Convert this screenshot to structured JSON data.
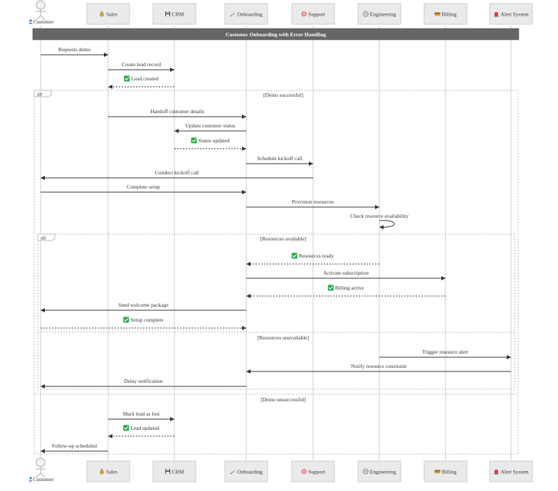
{
  "diagram": {
    "title": "Customer Onboarding with Error Handling",
    "colors": {
      "box_fill": "#eaeaea",
      "box_stroke": "#cccccc",
      "line": "#333333",
      "lifeline": "#cccccc",
      "title_bar": "#666666",
      "check": "#22aa44"
    },
    "participants": [
      {
        "id": "customer",
        "label": "Customer",
        "icon": "person-icon",
        "actor": true
      },
      {
        "id": "sales",
        "label": "Sales",
        "icon": "money-bag-icon"
      },
      {
        "id": "crm",
        "label": "CRM",
        "icon": "floppy-disk-icon"
      },
      {
        "id": "onboarding",
        "label": "Onboarding",
        "icon": "rocket-icon"
      },
      {
        "id": "support",
        "label": "Support",
        "icon": "target-icon"
      },
      {
        "id": "engineering",
        "label": "Engineering",
        "icon": "gear-icon"
      },
      {
        "id": "billing",
        "label": "Billing",
        "icon": "credit-card-icon"
      },
      {
        "id": "alert",
        "label": "Alert System",
        "icon": "alarm-icon"
      }
    ],
    "messages": [
      {
        "from": "customer",
        "to": "sales",
        "text": "Requests demo",
        "dashed": false
      },
      {
        "from": "sales",
        "to": "crm",
        "text": "Create lead record",
        "dashed": false
      },
      {
        "from": "crm",
        "to": "sales",
        "text": "Lead created",
        "dashed": true,
        "check": true
      },
      {
        "from": "sales",
        "to": "onboarding",
        "text": "Handoff customer details",
        "dashed": false
      },
      {
        "from": "onboarding",
        "to": "crm",
        "text": "Update customer status",
        "dashed": false
      },
      {
        "from": "crm",
        "to": "onboarding",
        "text": "Status updated",
        "dashed": true,
        "check": true
      },
      {
        "from": "onboarding",
        "to": "support",
        "text": "Schedule kickoff call",
        "dashed": false
      },
      {
        "from": "support",
        "to": "customer",
        "text": "Conduct kickoff call",
        "dashed": false
      },
      {
        "from": "customer",
        "to": "onboarding",
        "text": "Complete setup",
        "dashed": false
      },
      {
        "from": "onboarding",
        "to": "engineering",
        "text": "Provision resources",
        "dashed": false
      },
      {
        "from": "engineering",
        "to": "engineering",
        "text": "Check resource availability",
        "dashed": false,
        "self": true
      },
      {
        "from": "engineering",
        "to": "onboarding",
        "text": "Resources ready",
        "dashed": true,
        "check": true
      },
      {
        "from": "onboarding",
        "to": "billing",
        "text": "Activate subscription",
        "dashed": false
      },
      {
        "from": "billing",
        "to": "onboarding",
        "text": "Billing active",
        "dashed": true,
        "check": true
      },
      {
        "from": "onboarding",
        "to": "customer",
        "text": "Send welcome package",
        "dashed": false
      },
      {
        "from": "customer",
        "to": "onboarding",
        "text": "Setup complete",
        "dashed": true,
        "check": true
      },
      {
        "from": "engineering",
        "to": "alert",
        "text": "Trigger resource alert",
        "dashed": false
      },
      {
        "from": "alert",
        "to": "onboarding",
        "text": "Notify resource constraint",
        "dashed": false
      },
      {
        "from": "onboarding",
        "to": "customer",
        "text": "Delay notification",
        "dashed": false
      },
      {
        "from": "sales",
        "to": "crm",
        "text": "Mark lead as lost",
        "dashed": false
      },
      {
        "from": "crm",
        "to": "sales",
        "text": "Lead updated",
        "dashed": true,
        "check": true
      },
      {
        "from": "sales",
        "to": "customer",
        "text": "Follow-up scheduled",
        "dashed": false
      }
    ],
    "fragments": [
      {
        "keyword": "alt",
        "condition": "[Demo successful]",
        "else_condition": "[Demo unsuccessful]"
      },
      {
        "keyword": "alt",
        "condition": "[Resources available]",
        "else_condition": "[Resources unavailable]"
      }
    ]
  }
}
